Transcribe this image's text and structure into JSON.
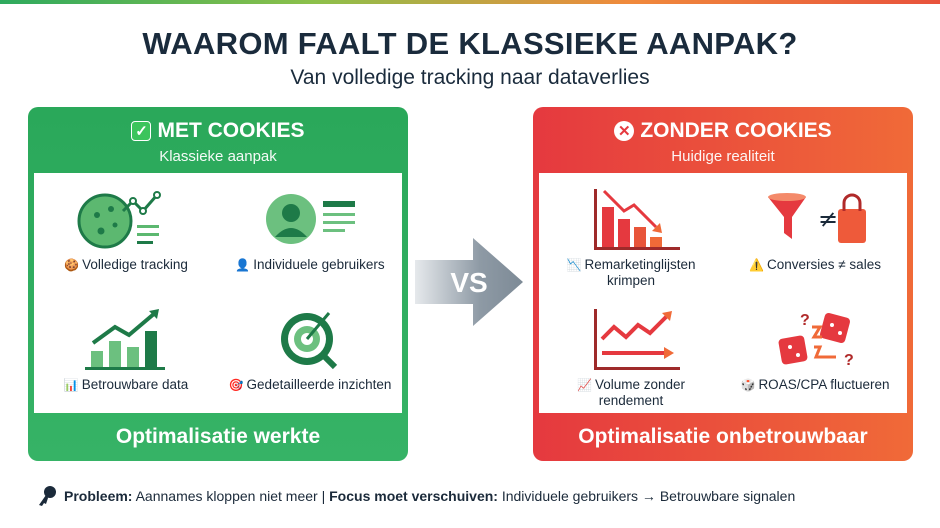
{
  "title": "WAAROM FAALT DE KLASSIEKE AANPAK?",
  "subtitle": "Van volledige tracking naar dataverlies",
  "colors": {
    "green": "#2aa85a",
    "red": "#e5393f",
    "orange": "#f06a38",
    "navy": "#1a2b3c"
  },
  "left": {
    "badge_icon": "✓",
    "heading": "MET COOKIES",
    "subheading": "Klassieke aanpak",
    "items": [
      {
        "icon": "🍪",
        "label": "Volledige tracking"
      },
      {
        "icon": "👤",
        "label": "Individuele gebruikers"
      },
      {
        "icon": "📊",
        "label": "Betrouwbare data"
      },
      {
        "icon": "🎯",
        "label": "Gedetailleerde inzichten"
      }
    ],
    "footer": "Optimalisatie werkte"
  },
  "vs": "VS",
  "right": {
    "badge_icon": "✕",
    "heading": "ZONDER COOKIES",
    "subheading": "Huidige realiteit",
    "items": [
      {
        "icon": "📉",
        "label": "Remarketinglijsten krimpen"
      },
      {
        "icon": "⚠️",
        "label": "Conversies ≠ sales"
      },
      {
        "icon": "📈",
        "label": "Volume zonder rendement"
      },
      {
        "icon": "🎲",
        "label": "ROAS/CPA fluctueren"
      }
    ],
    "footer": "Optimalisatie onbetrouwbaar"
  },
  "bottom": {
    "icon": "key-icon",
    "problem_label": "Probleem:",
    "problem_text": "Aannames kloppen niet meer",
    "separator": "|",
    "focus_label": "Focus moet verschuiven:",
    "focus_text": "Individuele gebruikers → Betrouwbare signalen"
  }
}
